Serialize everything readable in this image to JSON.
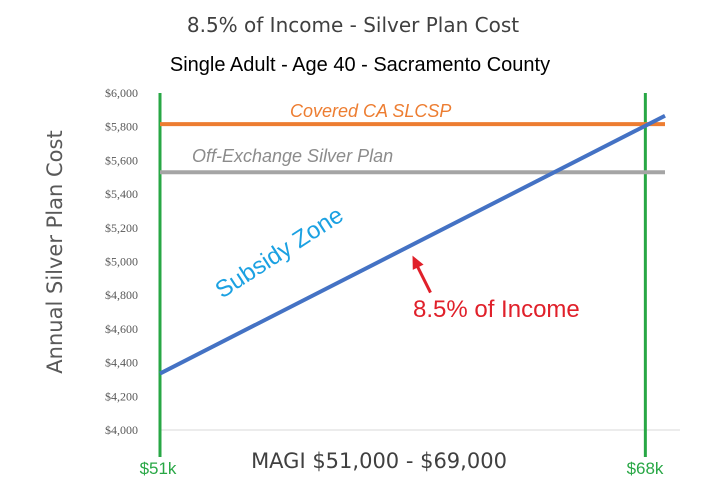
{
  "chart_data": {
    "type": "line",
    "title": "8.5% of Income - Silver Plan Cost",
    "subtitle": "Single Adult - Age 40 - Sacramento County",
    "ylabel": "Annual Silver Plan Cost",
    "xlabel": "MAGI  $51,000 - $69,000",
    "ylim": [
      4000,
      6000
    ],
    "xlim": [
      51000,
      69000
    ],
    "y_ticks": [
      {
        "value": 4000,
        "label": "$4,000"
      },
      {
        "value": 4200,
        "label": "$4,200"
      },
      {
        "value": 4400,
        "label": "$4,400"
      },
      {
        "value": 4600,
        "label": "$4,600"
      },
      {
        "value": 4800,
        "label": "$4,800"
      },
      {
        "value": 5000,
        "label": "$5,000"
      },
      {
        "value": 5200,
        "label": "$5,200"
      },
      {
        "value": 5400,
        "label": "$5,400"
      },
      {
        "value": 5600,
        "label": "$5,600"
      },
      {
        "value": 5800,
        "label": "$5,800"
      },
      {
        "value": 6000,
        "label": "$6,000"
      }
    ],
    "grid": false,
    "legend": "none",
    "series": [
      {
        "name": "Covered CA SLCSP",
        "color": "#ED7D31",
        "x": [
          51000,
          69000
        ],
        "y": [
          5815,
          5815
        ]
      },
      {
        "name": "Off-Exchange Silver Plan",
        "color": "#A5A5A5",
        "x": [
          51000,
          69000
        ],
        "y": [
          5530,
          5530
        ]
      },
      {
        "name": "8.5% of Income",
        "color": "#4472C4",
        "x": [
          51000,
          69000
        ],
        "y": [
          4335,
          5865
        ]
      }
    ],
    "markers": [
      {
        "label": "$51k",
        "x": 51000,
        "color": "#28A745"
      },
      {
        "label": "$68k",
        "x": 68300,
        "color": "#28A745"
      }
    ],
    "annotations": [
      {
        "text": "Subsidy Zone",
        "color": "#1BA1E2"
      },
      {
        "text": "8.5% of Income",
        "color": "#E0202A",
        "arrow_to": {
          "x": 60000,
          "y": 5035
        }
      }
    ]
  }
}
